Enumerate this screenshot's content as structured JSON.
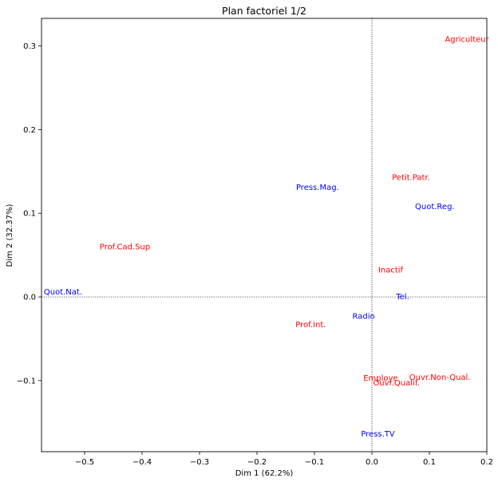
{
  "chart_data": {
    "type": "scatter",
    "title": "Plan factoriel 1/2",
    "xlabel": "Dim 1 (62.2%)",
    "ylabel": "Dim 2 (32.37%)",
    "xlim": [
      -0.575,
      0.2
    ],
    "ylim": [
      -0.185,
      0.333
    ],
    "xticks": [
      -0.5,
      -0.4,
      -0.3,
      -0.2,
      -0.1,
      0.0,
      0.1,
      0.2
    ],
    "xtick_labels": [
      "−0.5",
      "−0.4",
      "−0.3",
      "−0.2",
      "−0.1",
      "0.0",
      "0.1",
      "0.2"
    ],
    "yticks": [
      -0.1,
      0.0,
      0.1,
      0.2,
      0.3
    ],
    "ytick_labels": [
      "−0.1",
      "0.0",
      "0.1",
      "0.2",
      "0.3"
    ],
    "grid": false,
    "reference_lines": {
      "x": 0,
      "y": 0,
      "style": "dotted"
    },
    "series": [
      {
        "color": "#ff0000",
        "points": [
          {
            "label": "Agriculteur",
            "x": 0.127,
            "y": 0.305
          },
          {
            "label": "Petit.Patr.",
            "x": 0.035,
            "y": 0.14
          },
          {
            "label": "Prof.Cad.Sup",
            "x": -0.474,
            "y": 0.057
          },
          {
            "label": "Inactif",
            "x": 0.011,
            "y": 0.029
          },
          {
            "label": "Prof.Int.",
            "x": -0.133,
            "y": -0.036
          },
          {
            "label": "Employe",
            "x": -0.015,
            "y": -0.1
          },
          {
            "label": "Ouvr.Non-Qual.",
            "x": 0.065,
            "y": -0.099
          },
          {
            "label": "Ouvr.Qualif.",
            "x": 0.002,
            "y": -0.106
          }
        ]
      },
      {
        "color": "#0000ff",
        "points": [
          {
            "label": "Press.Mag.",
            "x": -0.132,
            "y": 0.128
          },
          {
            "label": "Quot.Reg.",
            "x": 0.075,
            "y": 0.105
          },
          {
            "label": "Quot.Nat.",
            "x": -0.571,
            "y": 0.003
          },
          {
            "label": "Tel.",
            "x": 0.042,
            "y": -0.003
          },
          {
            "label": "Radio",
            "x": -0.034,
            "y": -0.026
          },
          {
            "label": "Press.TV",
            "x": -0.019,
            "y": -0.167
          }
        ]
      }
    ]
  }
}
